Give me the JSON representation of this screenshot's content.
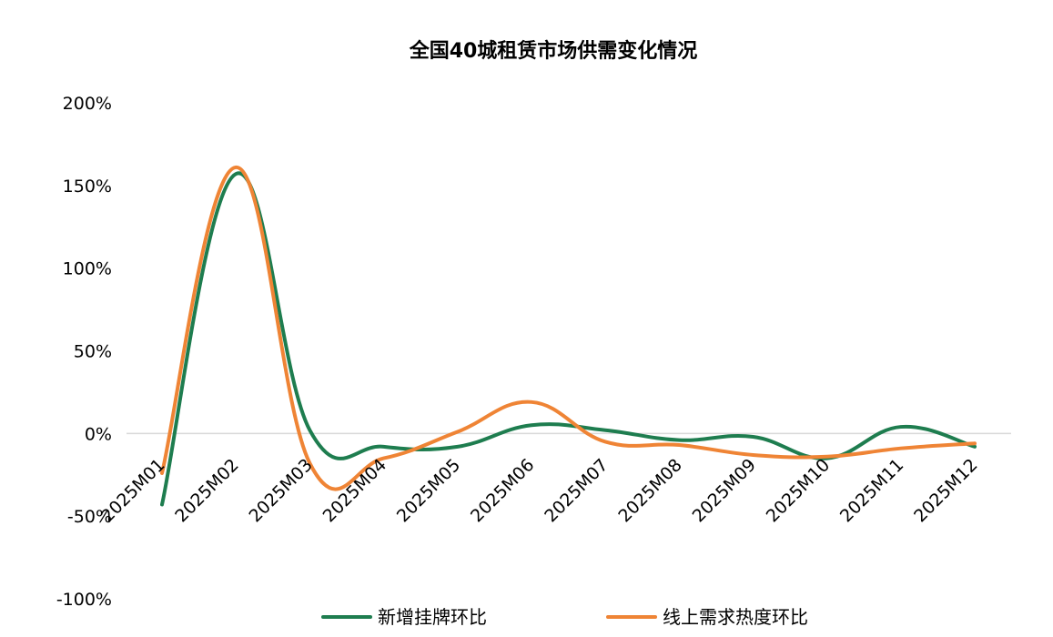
{
  "chart_data": {
    "type": "line",
    "title": "全国40城租赁市场供需变化情况",
    "xlabel": "",
    "ylabel": "",
    "categories": [
      "2025M01",
      "2025M02",
      "2025M03",
      "2025M04",
      "2025M05",
      "2025M06",
      "2025M07",
      "2025M08",
      "2025M09",
      "2025M10",
      "2025M11",
      "2025M12"
    ],
    "y_ticks": [
      "200%",
      "150%",
      "100%",
      "50%",
      "0%",
      "-50%",
      "-100%"
    ],
    "y_tick_values": [
      200,
      150,
      100,
      50,
      0,
      -50,
      -100
    ],
    "ylim": [
      -100,
      200
    ],
    "grid": false,
    "legend_position": "bottom",
    "series": [
      {
        "name": "新增挂牌环比",
        "color": "#1e7d4f",
        "values": [
          -43,
          157,
          2,
          -8,
          -8,
          5,
          2,
          -4,
          -2,
          -15,
          4,
          -8
        ]
      },
      {
        "name": "线上需求热度环比",
        "color": "#ef8435",
        "values": [
          -24,
          161,
          -18,
          -15,
          1,
          19,
          -5,
          -7,
          -13,
          -14,
          -9,
          -6
        ]
      }
    ]
  }
}
